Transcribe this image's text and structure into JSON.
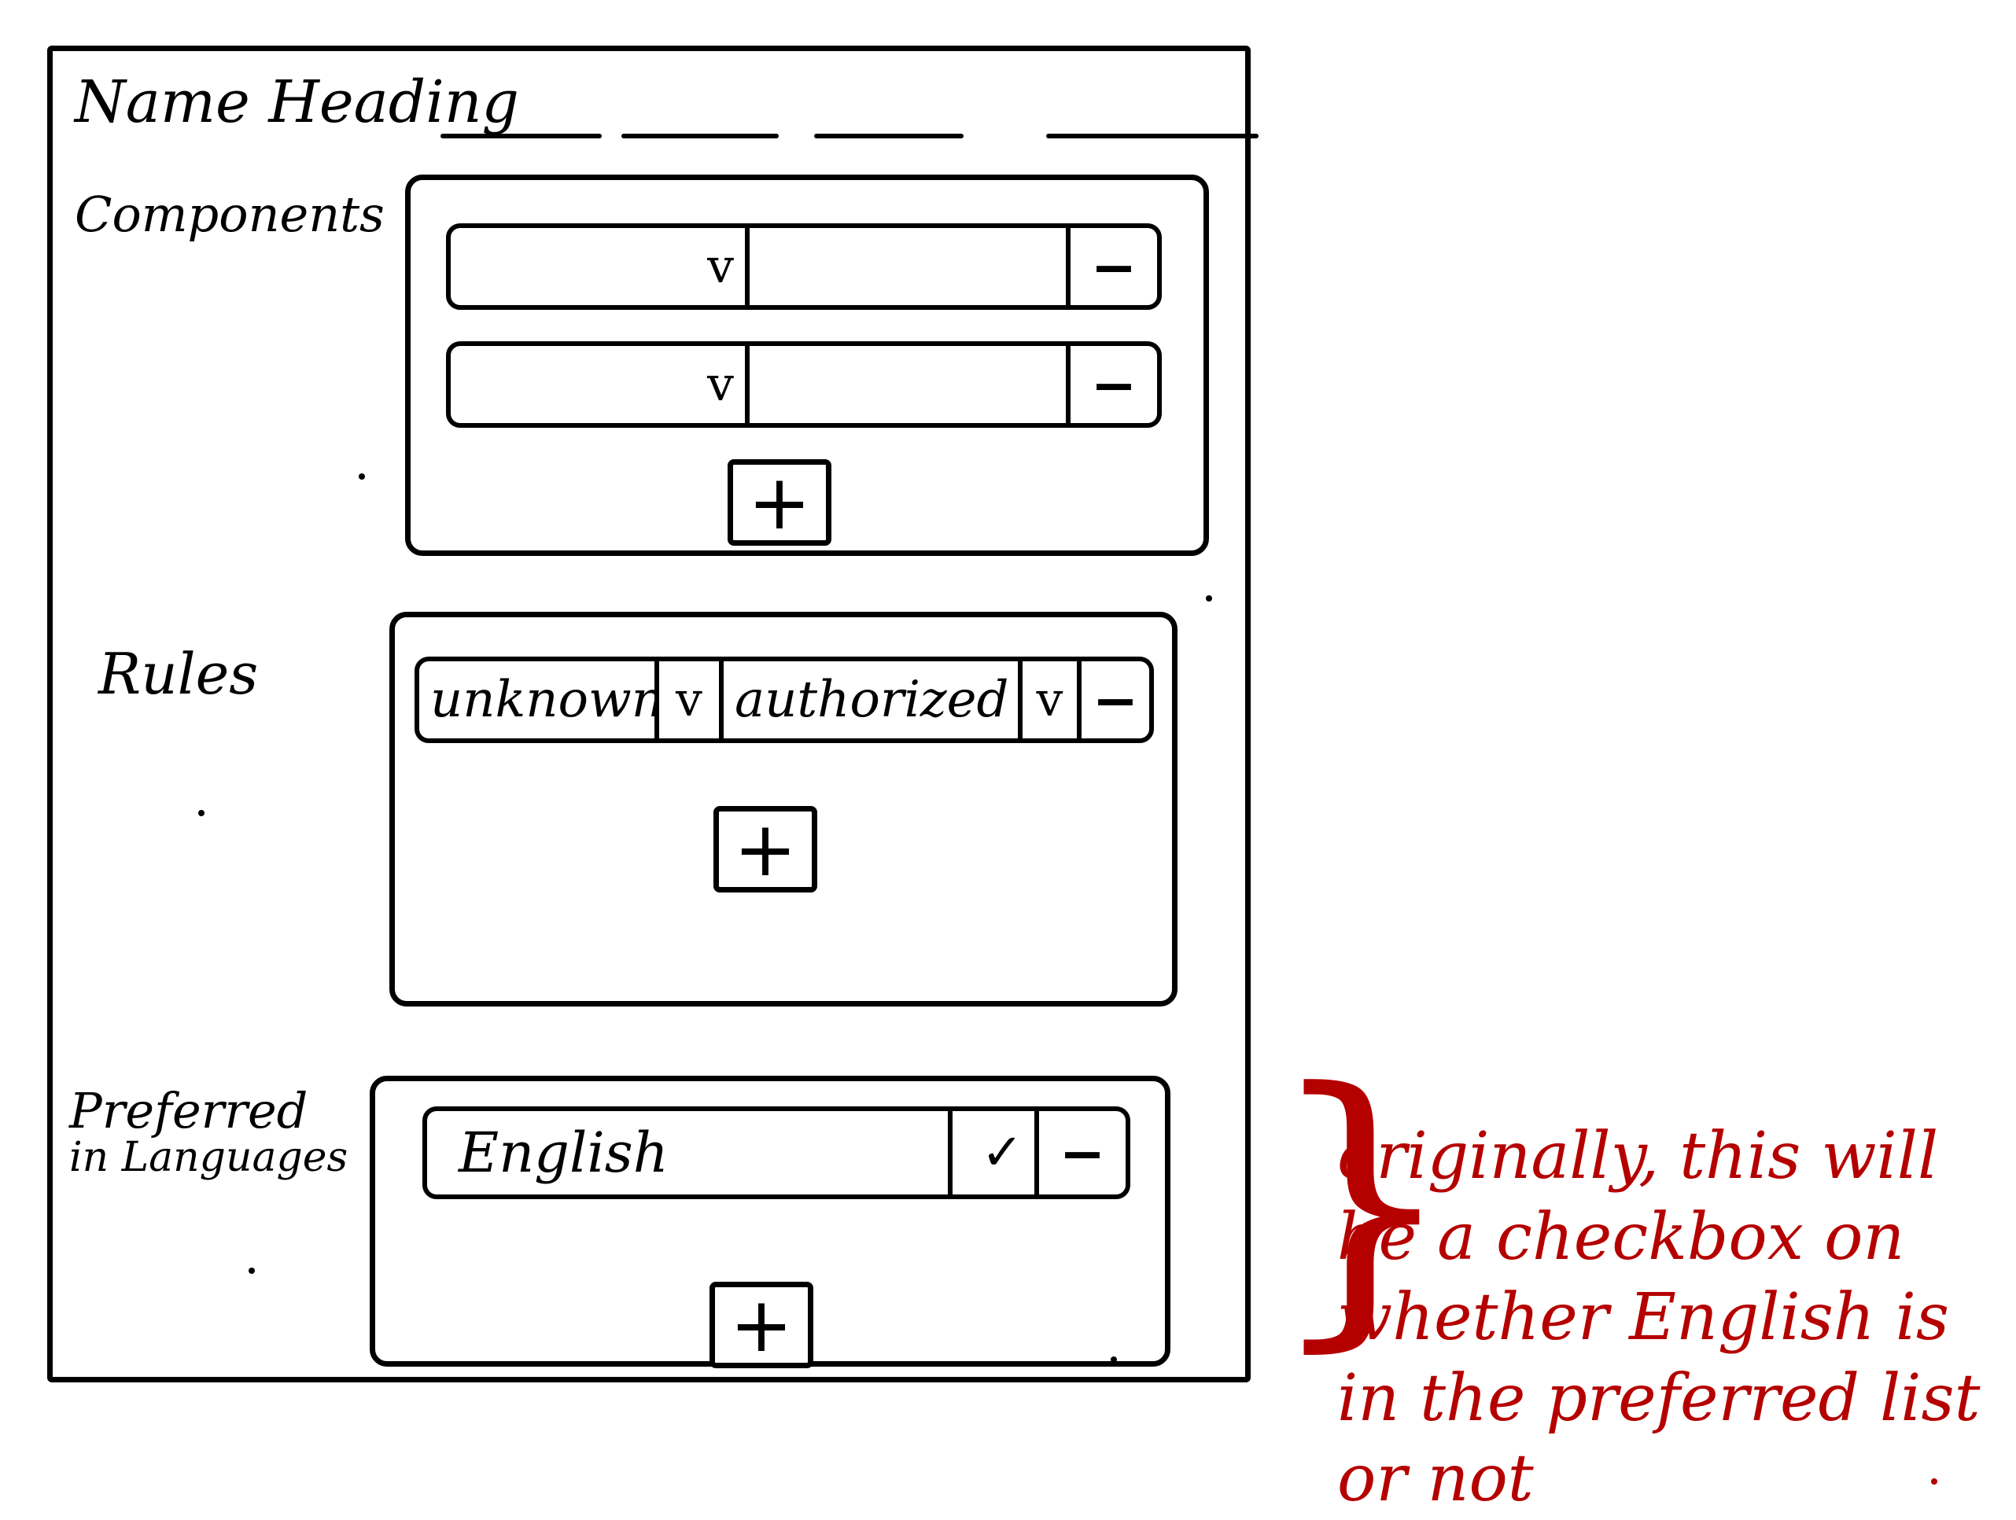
{
  "heading": {
    "text": "Name Heading"
  },
  "components": {
    "label": "Components",
    "rows": [
      {
        "select_caret": "v",
        "value": "",
        "remove": "−"
      },
      {
        "select_caret": "v",
        "value": "",
        "remove": "−"
      }
    ],
    "add": "+"
  },
  "rules": {
    "label": "Rules",
    "row": {
      "first_value": "unknown",
      "first_caret": "v",
      "second_value": "authorized",
      "second_caret": "v",
      "remove": "−"
    },
    "add": "+"
  },
  "languages": {
    "label_line1": "Preferred",
    "label_line2": "in Languages",
    "row": {
      "value": "English",
      "check": "✓",
      "remove": "−"
    },
    "add": "+"
  },
  "annotation": {
    "text": "originally, this will be a checkbox on whether English is in the preferred list or not",
    "color": "#b50000"
  }
}
